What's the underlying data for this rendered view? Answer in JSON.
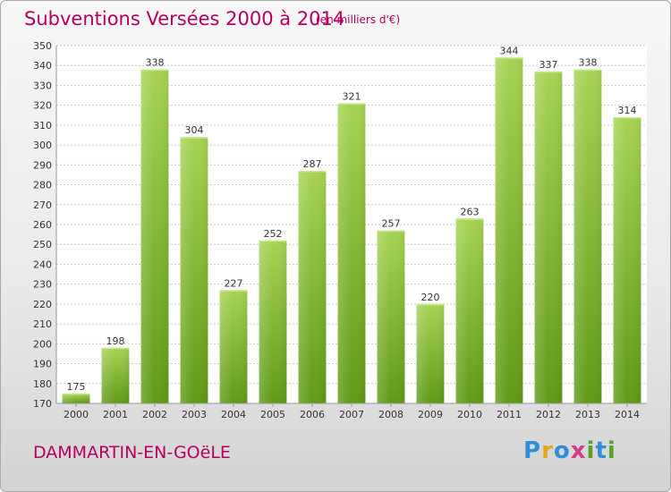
{
  "header": {
    "title": "Subventions Versées 2000 à 2014",
    "subtitle": "(en milliers d'€)"
  },
  "footer": {
    "commune": "DAMMARTIN-EN-GOëLE",
    "logo_letters": [
      {
        "char": "P",
        "color": "#2f8fd8"
      },
      {
        "char": "r",
        "color": "#e8a21c"
      },
      {
        "char": "o",
        "color": "#2f8fd8"
      },
      {
        "char": "x",
        "color": "#d33d8a"
      },
      {
        "char": "i",
        "color": "#5aa02c"
      },
      {
        "char": "t",
        "color": "#2f8fd8"
      },
      {
        "char": "i",
        "color": "#5aa02c"
      }
    ]
  },
  "chart_data": {
    "type": "bar",
    "categories": [
      "2000",
      "2001",
      "2002",
      "2003",
      "2004",
      "2005",
      "2006",
      "2007",
      "2008",
      "2009",
      "2010",
      "2011",
      "2012",
      "2013",
      "2014"
    ],
    "values": [
      175,
      198,
      338,
      304,
      227,
      252,
      287,
      321,
      257,
      220,
      263,
      344,
      337,
      338,
      314
    ],
    "title": "Subventions Versées 2000 à 2014",
    "ylim": [
      170,
      350
    ],
    "yticks": [
      170,
      180,
      190,
      200,
      210,
      220,
      230,
      240,
      250,
      260,
      270,
      280,
      290,
      300,
      310,
      320,
      330,
      340,
      350
    ],
    "grid": true,
    "data_labels": true,
    "bar_color_light": "#a6d455",
    "bar_color_dark": "#5f9a16"
  }
}
